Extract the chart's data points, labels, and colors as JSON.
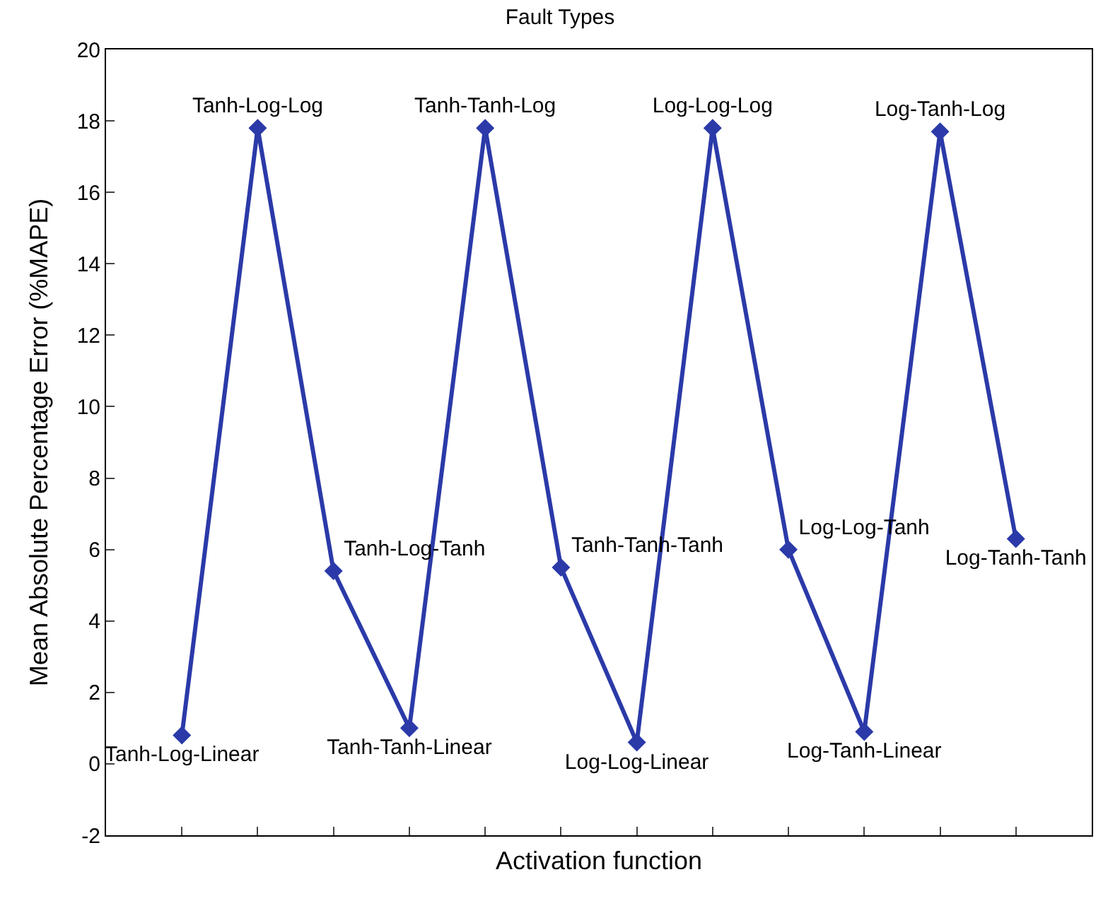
{
  "chart_data": {
    "type": "line",
    "title": "Fault Types",
    "xlabel": "Activation function",
    "ylabel": "Mean Absolute Percentage Error (%MAPE)",
    "categories": [
      null,
      null,
      null,
      null,
      null,
      null,
      null,
      null,
      null,
      null,
      null,
      null
    ],
    "series": [
      {
        "color": "#2b3aa8",
        "values": [
          0.8,
          17.8,
          5.4,
          1.0,
          17.8,
          5.5,
          0.6,
          17.8,
          6.0,
          0.9,
          17.7,
          6.3
        ],
        "value_labels": [
          "Tanh-Log-Linear",
          "Tanh-Log-Log",
          "Tanh-Log-Tanh",
          "Tanh-Tanh-Linear",
          "Tanh-Tanh-Log",
          "Tanh-Tanh-Tanh",
          "Log-Log-Linear",
          "Log-Log-Log",
          "Log-Log-Tanh",
          "Log-Tanh-Linear",
          "Log-Tanh-Log",
          "Log-Tanh-Tanh"
        ]
      }
    ],
    "ylim": [
      -2,
      20
    ],
    "yticks": [
      -2,
      0,
      2,
      4,
      6,
      8,
      10,
      12,
      14,
      16,
      18,
      20
    ],
    "marker": "diamond",
    "line_style": "solid",
    "legend": false,
    "tick_labels": "y"
  }
}
